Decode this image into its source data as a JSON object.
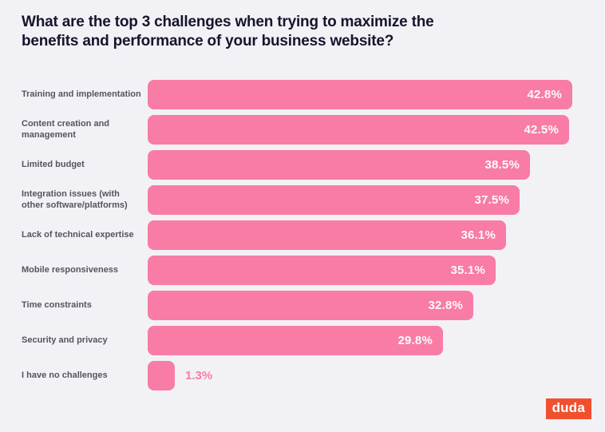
{
  "title": "What are the top 3 challenges when trying to maximize the benefits and performance of your business website?",
  "chart_data": {
    "type": "bar",
    "orientation": "horizontal",
    "title": "What are the top 3 challenges when trying to maximize the benefits and performance of your business website?",
    "categories": [
      "Training and implementation",
      "Content creation and management",
      "Limited budget",
      "Integration issues (with other software/platforms)",
      "Lack of technical expertise",
      "Mobile responsiveness",
      "Time constraints",
      "Security and privacy",
      "I have no challenges"
    ],
    "values": [
      42.8,
      42.5,
      38.5,
      37.5,
      36.1,
      35.1,
      32.8,
      29.8,
      1.3
    ],
    "value_labels": [
      "42.8%",
      "42.5%",
      "38.5%",
      "37.5%",
      "36.1%",
      "35.1%",
      "32.8%",
      "29.8%",
      "1.3%"
    ],
    "xlim": [
      0,
      43.9
    ],
    "grid": false,
    "legend": false,
    "bar_color": "#F87CA5",
    "value_label_color_inside": "#FDFAF7",
    "value_label_color_outside": "#F87CA5",
    "label_color": "#54545F",
    "title_color": "#15152C",
    "background_color": "#F2F2F6"
  },
  "logo": {
    "text": "duda",
    "bg_color": "#F1502F",
    "text_color": "#FFFFFF"
  }
}
